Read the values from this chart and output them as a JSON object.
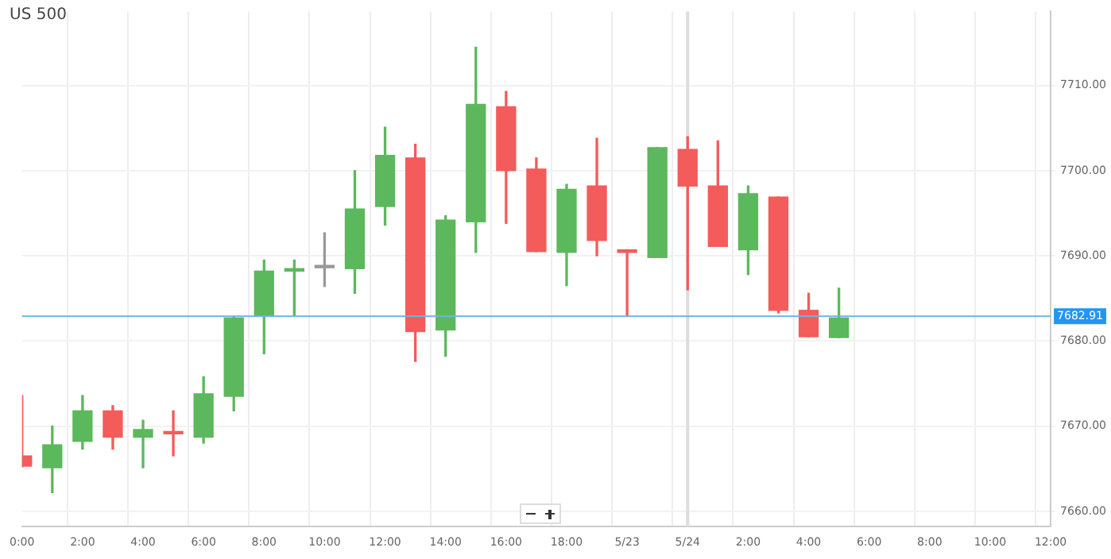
{
  "chart_data": {
    "type": "candlestick",
    "title": "US 500",
    "categories": [
      "0:00",
      null,
      "2:00",
      null,
      "4:00",
      null,
      "6:00",
      null,
      "8:00",
      null,
      "10:00",
      null,
      "12:00",
      null,
      "14:00",
      null,
      "16:00",
      null,
      "18:00",
      null,
      "5/23",
      null,
      "5/24",
      null,
      "2:00",
      null,
      "4:00",
      null,
      "6:00",
      null,
      "8:00",
      null,
      "10:00",
      null,
      "12:00"
    ],
    "ohlc": [
      [
        7666.5,
        7673.6,
        7665.2,
        7665.3
      ],
      [
        7665.1,
        7670,
        7662.2,
        7667.8
      ],
      [
        7668.2,
        7673.6,
        7667.3,
        7671.8
      ],
      [
        7671.8,
        7672.4,
        7667.3,
        7668.7
      ],
      [
        7668.7,
        7670.7,
        7665.1,
        7669.6
      ],
      [
        7669.3,
        7671.8,
        7666.5,
        7669.1
      ],
      [
        7668.7,
        7675.8,
        7668,
        7673.8
      ],
      [
        7673.5,
        7682.9,
        7671.8,
        7682.7
      ],
      [
        7682.9,
        7689.5,
        7678.5,
        7688.2
      ],
      [
        7688.2,
        7689.5,
        7682.9,
        7688.5
      ],
      [
        7688.6,
        7692.7,
        7686.4,
        7688.8
      ],
      [
        7688.5,
        7700,
        7685.6,
        7695.5
      ],
      [
        7695.8,
        7705.1,
        7693.6,
        7701.8
      ],
      [
        7701.5,
        7703.1,
        7677.6,
        7681.1
      ],
      [
        7681.3,
        7694.7,
        7678.2,
        7694.2
      ],
      [
        7694,
        7714.5,
        7690.4,
        7707.8
      ],
      [
        7707.5,
        7709.3,
        7693.8,
        7700
      ],
      [
        7700.2,
        7701.5,
        7690.5,
        7690.5
      ],
      [
        7690.4,
        7698.4,
        7686.5,
        7697.8
      ],
      [
        7698.2,
        7703.8,
        7690,
        7691.8
      ],
      [
        7690.7,
        7690.7,
        7682.9,
        7690.4
      ],
      [
        7689.8,
        7702.7,
        7689.8,
        7702.7
      ],
      [
        7702.5,
        7704,
        7686,
        7698.2
      ],
      [
        7698.2,
        7703.5,
        7691.1,
        7691.1
      ],
      [
        7690.7,
        7698.2,
        7687.8,
        7697.3
      ],
      [
        7696.9,
        7696.9,
        7683.3,
        7683.6
      ],
      [
        7683.6,
        7685.6,
        7680.5,
        7680.5
      ],
      [
        7680.4,
        7686.2,
        7680.4,
        7682.7
      ],
      null,
      null,
      null,
      null,
      null,
      null,
      null
    ],
    "colors": [
      "#f45b5b",
      "#5cb85c",
      "#5cb85c",
      "#f45b5b",
      "#5cb85c",
      "#f45b5b",
      "#5cb85c",
      "#5cb85c",
      "#5cb85c",
      "#5cb85c",
      "#999999",
      "#5cb85c",
      "#5cb85c",
      "#f45b5b",
      "#5cb85c",
      "#5cb85c",
      "#f45b5b",
      "#f45b5b",
      "#5cb85c",
      "#f45b5b",
      "#f45b5b",
      "#5cb85c",
      "#f45b5b",
      "#f45b5b",
      "#5cb85c",
      "#f45b5b",
      "#f45b5b",
      "#5cb85c",
      null,
      null,
      null,
      null,
      null,
      null,
      null
    ],
    "ylim": [
      7658.2,
      7718.7
    ],
    "yticks": [
      {
        "value": 7660,
        "label": "7660.00"
      },
      {
        "value": 7670,
        "label": "7670.00"
      },
      {
        "value": 7680,
        "label": "7680.00"
      },
      {
        "value": 7690,
        "label": "7690.00"
      },
      {
        "value": 7700,
        "label": "7700.00"
      },
      {
        "value": 7710,
        "label": "7710.00"
      }
    ],
    "ref_lines": [
      {
        "axis": "y",
        "value": 7682.91,
        "label": "7682.91",
        "color": "#6ab4e8"
      },
      {
        "axis": "x",
        "value": "5/24",
        "color": "#dddddd"
      }
    ],
    "grid": true,
    "legend": false
  }
}
